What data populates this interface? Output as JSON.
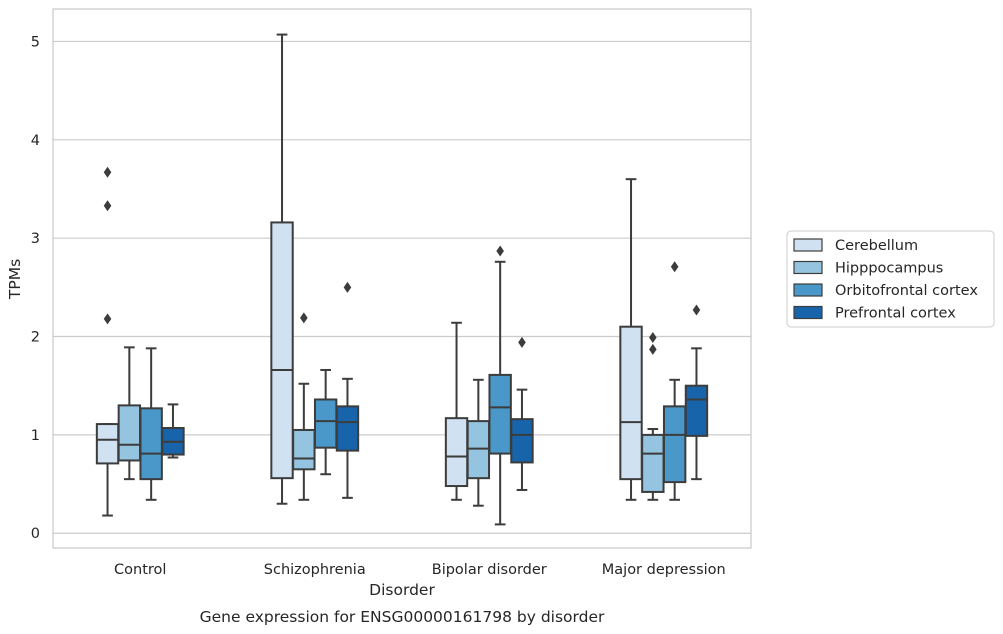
{
  "chart_data": {
    "type": "boxplot",
    "title": "",
    "caption": "Gene expression for ENSG00000161798 by disorder",
    "xlabel": "Disorder",
    "ylabel": "TPMs",
    "ylim": [
      -0.15,
      5.33
    ],
    "yticks": [
      0,
      1,
      2,
      3,
      4,
      5
    ],
    "grid": "horizontal",
    "legend_position": "right",
    "categories": [
      "Control",
      "Schizophrenia",
      "Bipolar disorder",
      "Major depression"
    ],
    "series": [
      {
        "name": "Cerebellum",
        "color": "#d0e1f2",
        "boxes": [
          {
            "whislo": 0.18,
            "q1": 0.71,
            "med": 0.95,
            "q3": 1.11,
            "whishi": 1.11,
            "fliers": [
              2.18,
              3.33,
              3.67
            ]
          },
          {
            "whislo": 0.3,
            "q1": 0.56,
            "med": 1.66,
            "q3": 3.16,
            "whishi": 5.07,
            "fliers": []
          },
          {
            "whislo": 0.34,
            "q1": 0.48,
            "med": 0.78,
            "q3": 1.17,
            "whishi": 2.14,
            "fliers": []
          },
          {
            "whislo": 0.34,
            "q1": 0.55,
            "med": 1.13,
            "q3": 2.1,
            "whishi": 3.6,
            "fliers": []
          }
        ]
      },
      {
        "name": "Hipppocampus",
        "color": "#94c4df",
        "boxes": [
          {
            "whislo": 0.55,
            "q1": 0.74,
            "med": 0.9,
            "q3": 1.3,
            "whishi": 1.89,
            "fliers": []
          },
          {
            "whislo": 0.34,
            "q1": 0.65,
            "med": 0.76,
            "q3": 1.05,
            "whishi": 1.52,
            "fliers": [
              2.19
            ]
          },
          {
            "whislo": 0.28,
            "q1": 0.56,
            "med": 0.86,
            "q3": 1.14,
            "whishi": 1.56,
            "fliers": []
          },
          {
            "whislo": 0.34,
            "q1": 0.42,
            "med": 0.81,
            "q3": 1.0,
            "whishi": 1.06,
            "fliers": [
              1.87,
              1.99
            ]
          }
        ]
      },
      {
        "name": "Orbitofrontal cortex",
        "color": "#4a98c9",
        "boxes": [
          {
            "whislo": 0.34,
            "q1": 0.55,
            "med": 0.81,
            "q3": 1.27,
            "whishi": 1.88,
            "fliers": []
          },
          {
            "whislo": 0.6,
            "q1": 0.87,
            "med": 1.14,
            "q3": 1.36,
            "whishi": 1.66,
            "fliers": []
          },
          {
            "whislo": 0.09,
            "q1": 0.81,
            "med": 1.28,
            "q3": 1.61,
            "whishi": 2.76,
            "fliers": [
              2.87
            ]
          },
          {
            "whislo": 0.34,
            "q1": 0.52,
            "med": 1.0,
            "q3": 1.29,
            "whishi": 1.56,
            "fliers": [
              2.71
            ]
          }
        ]
      },
      {
        "name": "Prefrontal cortex",
        "color": "#1764ab",
        "boxes": [
          {
            "whislo": 0.77,
            "q1": 0.8,
            "med": 0.93,
            "q3": 1.07,
            "whishi": 1.31,
            "fliers": []
          },
          {
            "whislo": 0.36,
            "q1": 0.84,
            "med": 1.13,
            "q3": 1.29,
            "whishi": 1.57,
            "fliers": [
              2.5
            ]
          },
          {
            "whislo": 0.44,
            "q1": 0.72,
            "med": 1.0,
            "q3": 1.16,
            "whishi": 1.46,
            "fliers": [
              1.94
            ]
          },
          {
            "whislo": 0.55,
            "q1": 0.99,
            "med": 1.36,
            "q3": 1.5,
            "whishi": 1.88,
            "fliers": [
              2.27
            ]
          }
        ]
      }
    ]
  }
}
